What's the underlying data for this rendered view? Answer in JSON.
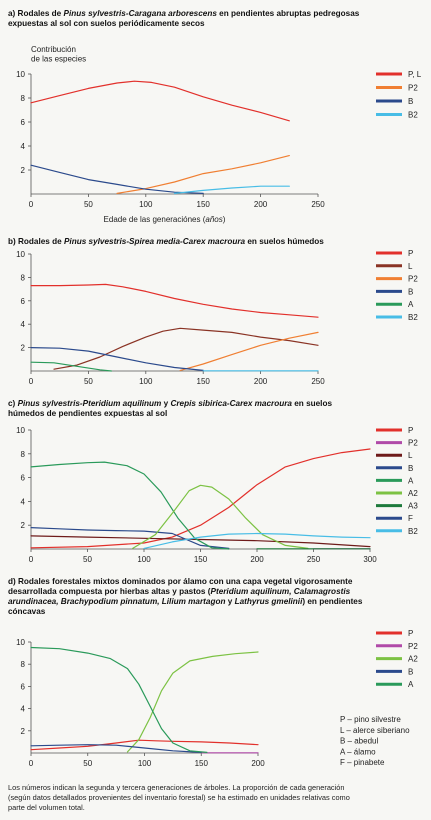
{
  "chart_data": [
    {
      "type": "line",
      "title_parts": [
        {
          "t": "a) Rodales de ",
          "i": false
        },
        {
          "t": "Pinus sylvestris-Caragana arborescens",
          "i": true
        },
        {
          "t": " en pendientes abruptas pedregosas",
          "i": false
        },
        {
          "t": "\nexpuestas al sol con suelos periódicamente secos",
          "i": false
        }
      ],
      "ylabel_lines": [
        "Contribución",
        "de las especies"
      ],
      "xlabel_parts": [
        {
          "t": "Edade de las generaciónes (",
          "i": false
        },
        {
          "t": "años",
          "i": true
        },
        {
          "t": ")",
          "i": false
        }
      ],
      "xlim": [
        0,
        250
      ],
      "ylim": [
        0,
        10
      ],
      "xticks": [
        0,
        50,
        100,
        150,
        200,
        250
      ],
      "yticks": [
        2,
        4,
        6,
        8,
        10
      ],
      "legend_position": "right",
      "series": [
        {
          "name": "P, L",
          "color": "#e2302b",
          "points": [
            [
              0,
              7.6
            ],
            [
              25,
              8.2
            ],
            [
              50,
              8.8
            ],
            [
              75,
              9.25
            ],
            [
              90,
              9.4
            ],
            [
              105,
              9.3
            ],
            [
              125,
              8.9
            ],
            [
              150,
              8.1
            ],
            [
              175,
              7.4
            ],
            [
              200,
              6.8
            ],
            [
              225,
              6.1
            ]
          ]
        },
        {
          "name": "P2",
          "color": "#f07f32",
          "points": [
            [
              75,
              0.05
            ],
            [
              100,
              0.45
            ],
            [
              125,
              1.0
            ],
            [
              150,
              1.7
            ],
            [
              175,
              2.1
            ],
            [
              200,
              2.6
            ],
            [
              225,
              3.2
            ]
          ]
        },
        {
          "name": "B",
          "color": "#2b4a8c",
          "points": [
            [
              0,
              2.4
            ],
            [
              25,
              1.8
            ],
            [
              50,
              1.2
            ],
            [
              75,
              0.8
            ],
            [
              100,
              0.4
            ],
            [
              125,
              0.15
            ],
            [
              150,
              0.05
            ]
          ]
        },
        {
          "name": "B2",
          "color": "#48bde6",
          "points": [
            [
              125,
              0.05
            ],
            [
              150,
              0.3
            ],
            [
              175,
              0.5
            ],
            [
              200,
              0.65
            ],
            [
              225,
              0.65
            ]
          ]
        }
      ]
    },
    {
      "type": "line",
      "title_parts": [
        {
          "t": "b) Rodales de ",
          "i": false
        },
        {
          "t": "Pinus sylvestris-Spirea media-Carex macroura",
          "i": true
        },
        {
          "t": " en suelos húmedos",
          "i": false
        }
      ],
      "xlim": [
        0,
        250
      ],
      "ylim": [
        0,
        10
      ],
      "xticks": [
        0,
        50,
        100,
        150,
        200,
        250
      ],
      "yticks": [
        2,
        4,
        6,
        8,
        10
      ],
      "legend_position": "right",
      "series": [
        {
          "name": "P",
          "color": "#e2302b",
          "points": [
            [
              0,
              7.3
            ],
            [
              25,
              7.3
            ],
            [
              50,
              7.35
            ],
            [
              65,
              7.4
            ],
            [
              80,
              7.2
            ],
            [
              100,
              6.8
            ],
            [
              125,
              6.2
            ],
            [
              150,
              5.7
            ],
            [
              175,
              5.3
            ],
            [
              200,
              5.0
            ],
            [
              225,
              4.8
            ],
            [
              250,
              4.6
            ]
          ]
        },
        {
          "name": "L",
          "color": "#8a3324",
          "points": [
            [
              20,
              0.15
            ],
            [
              40,
              0.5
            ],
            [
              60,
              1.2
            ],
            [
              80,
              2.1
            ],
            [
              100,
              2.9
            ],
            [
              115,
              3.4
            ],
            [
              130,
              3.65
            ],
            [
              150,
              3.5
            ],
            [
              175,
              3.3
            ],
            [
              200,
              2.9
            ],
            [
              225,
              2.6
            ],
            [
              250,
              2.2
            ]
          ]
        },
        {
          "name": "P2",
          "color": "#f07f32",
          "points": [
            [
              130,
              0.05
            ],
            [
              150,
              0.6
            ],
            [
              175,
              1.4
            ],
            [
              200,
              2.2
            ],
            [
              225,
              2.8
            ],
            [
              250,
              3.3
            ]
          ]
        },
        {
          "name": "B",
          "color": "#2b4a8c",
          "points": [
            [
              0,
              2.0
            ],
            [
              25,
              1.95
            ],
            [
              50,
              1.7
            ],
            [
              75,
              1.2
            ],
            [
              100,
              0.7
            ],
            [
              125,
              0.3
            ],
            [
              150,
              0.05
            ]
          ]
        },
        {
          "name": "A",
          "color": "#2a9a5a",
          "points": [
            [
              0,
              0.75
            ],
            [
              20,
              0.7
            ],
            [
              40,
              0.4
            ],
            [
              60,
              0.1
            ],
            [
              70,
              0.0
            ]
          ]
        },
        {
          "name": "B2",
          "color": "#48bde6",
          "points": [
            [
              150,
              0.02
            ],
            [
              250,
              0.02
            ]
          ]
        }
      ]
    },
    {
      "type": "line",
      "title_parts": [
        {
          "t": "c) ",
          "i": false
        },
        {
          "t": "Pinus sylvestris-Pteridium aquilinum",
          "i": true
        },
        {
          "t": " y ",
          "i": false
        },
        {
          "t": "Crepis sibirica-Carex macroura",
          "i": true
        },
        {
          "t": " en suelos",
          "i": false
        },
        {
          "t": "\nhúmedos de pendientes expuestas al sol",
          "i": false
        }
      ],
      "xlim": [
        0,
        300
      ],
      "ylim": [
        0,
        10
      ],
      "xticks": [
        0,
        50,
        100,
        150,
        200,
        250,
        300
      ],
      "yticks": [
        2,
        4,
        6,
        8,
        10
      ],
      "legend_position": "right",
      "series": [
        {
          "name": "P",
          "color": "#e2302b",
          "points": [
            [
              0,
              0.1
            ],
            [
              50,
              0.2
            ],
            [
              100,
              0.5
            ],
            [
              125,
              1.0
            ],
            [
              150,
              2.0
            ],
            [
              175,
              3.5
            ],
            [
              200,
              5.4
            ],
            [
              225,
              6.9
            ],
            [
              250,
              7.6
            ],
            [
              275,
              8.1
            ],
            [
              300,
              8.4
            ]
          ]
        },
        {
          "name": "P2",
          "color": "#b04aa8",
          "points": [
            [
              250,
              0.02
            ],
            [
              300,
              0.02
            ]
          ]
        },
        {
          "name": "L",
          "color": "#6e1a1a",
          "points": [
            [
              0,
              1.1
            ],
            [
              50,
              1.0
            ],
            [
              100,
              0.9
            ],
            [
              150,
              0.8
            ],
            [
              200,
              0.7
            ],
            [
              250,
              0.5
            ],
            [
              300,
              0.2
            ]
          ]
        },
        {
          "name": "B",
          "color": "#2b4a8c",
          "points": [
            [
              0,
              1.8
            ],
            [
              25,
              1.7
            ],
            [
              50,
              1.6
            ],
            [
              75,
              1.55
            ],
            [
              100,
              1.5
            ],
            [
              125,
              1.3
            ],
            [
              150,
              0.3
            ],
            [
              175,
              0.05
            ]
          ]
        },
        {
          "name": "A",
          "color": "#2a9a5a",
          "points": [
            [
              0,
              6.9
            ],
            [
              25,
              7.1
            ],
            [
              50,
              7.25
            ],
            [
              65,
              7.3
            ],
            [
              85,
              7.0
            ],
            [
              100,
              6.3
            ],
            [
              115,
              4.8
            ],
            [
              130,
              2.6
            ],
            [
              145,
              0.9
            ],
            [
              160,
              0.1
            ],
            [
              175,
              0.0
            ]
          ]
        },
        {
          "name": "A2",
          "color": "#7cc243",
          "points": [
            [
              90,
              0.05
            ],
            [
              110,
              1.2
            ],
            [
              125,
              3.0
            ],
            [
              140,
              4.9
            ],
            [
              150,
              5.35
            ],
            [
              160,
              5.2
            ],
            [
              175,
              4.2
            ],
            [
              190,
              2.6
            ],
            [
              205,
              1.2
            ],
            [
              225,
              0.3
            ],
            [
              245,
              0.05
            ]
          ]
        },
        {
          "name": "A3",
          "color": "#1e7a3c",
          "points": [
            [
              200,
              0.02
            ],
            [
              300,
              0.02
            ]
          ]
        },
        {
          "name": "F",
          "color": "#2b4a8c",
          "points": [
            [
              0,
              0.0
            ]
          ]
        },
        {
          "name": "B2",
          "color": "#48bde6",
          "points": [
            [
              100,
              0.05
            ],
            [
              125,
              0.6
            ],
            [
              150,
              1.0
            ],
            [
              175,
              1.25
            ],
            [
              200,
              1.3
            ],
            [
              225,
              1.25
            ],
            [
              250,
              1.1
            ],
            [
              275,
              1.0
            ],
            [
              300,
              0.95
            ]
          ]
        }
      ]
    },
    {
      "type": "line",
      "title_parts": [
        {
          "t": "d) Rodales forestales mixtos dominados por álamo con una capa vegetal vigorosamente",
          "i": false
        },
        {
          "t": "\ndesarrollada compuesta por hierbas altas y pastos (",
          "i": false
        },
        {
          "t": "Pteridium aquilinum, Calamagrostis",
          "i": true
        },
        {
          "t": "\narundinacea, Brachypodium pinnatum, Lilium martagon",
          "i": true
        },
        {
          "t": " y ",
          "i": false
        },
        {
          "t": "Lathyrus gmelinii",
          "i": true
        },
        {
          "t": ") en pendientes",
          "i": false
        },
        {
          "t": "\ncóncavas",
          "i": false
        }
      ],
      "xlim": [
        0,
        200
      ],
      "ylim": [
        0,
        10
      ],
      "xticks": [
        0,
        50,
        100,
        150,
        200
      ],
      "yticks": [
        2,
        4,
        6,
        8,
        10
      ],
      "legend_position": "right",
      "series": [
        {
          "name": "P",
          "color": "#e2302b",
          "points": [
            [
              0,
              0.3
            ],
            [
              25,
              0.45
            ],
            [
              50,
              0.6
            ],
            [
              75,
              0.9
            ],
            [
              95,
              1.15
            ],
            [
              110,
              1.1
            ],
            [
              125,
              1.05
            ],
            [
              150,
              1.0
            ],
            [
              175,
              0.9
            ],
            [
              200,
              0.75
            ]
          ]
        },
        {
          "name": "P2",
          "color": "#b04aa8",
          "points": [
            [
              150,
              0.02
            ],
            [
              200,
              0.02
            ]
          ]
        },
        {
          "name": "A2",
          "color": "#7cc243",
          "points": [
            [
              85,
              0.1
            ],
            [
              95,
              1.2
            ],
            [
              105,
              3.2
            ],
            [
              115,
              5.6
            ],
            [
              125,
              7.2
            ],
            [
              140,
              8.3
            ],
            [
              160,
              8.7
            ],
            [
              180,
              8.95
            ],
            [
              200,
              9.1
            ]
          ]
        },
        {
          "name": "B",
          "color": "#2b4a8c",
          "points": [
            [
              0,
              0.65
            ],
            [
              25,
              0.7
            ],
            [
              50,
              0.75
            ],
            [
              75,
              0.7
            ],
            [
              100,
              0.45
            ],
            [
              125,
              0.2
            ],
            [
              150,
              0.05
            ]
          ]
        },
        {
          "name": "A",
          "color": "#2a9a5a",
          "points": [
            [
              0,
              9.5
            ],
            [
              25,
              9.4
            ],
            [
              50,
              9.0
            ],
            [
              70,
              8.5
            ],
            [
              85,
              7.6
            ],
            [
              95,
              6.2
            ],
            [
              105,
              4.2
            ],
            [
              115,
              2.2
            ],
            [
              125,
              0.9
            ],
            [
              140,
              0.2
            ],
            [
              155,
              0.05
            ]
          ]
        }
      ]
    }
  ],
  "abbreviations": [
    "P – pino silvestre",
    "L – alerce siberiano",
    "B – abedul",
    "A – álamo",
    "F – pinabete"
  ],
  "footnote_lines": [
    "Los números indican la segunda y tercera generaciones de árboles. La proporción de cada generación",
    "(según datos detallados provenientes del inventario forestal) se ha estimado en unidades relativas como",
    "parte del volumen total."
  ]
}
